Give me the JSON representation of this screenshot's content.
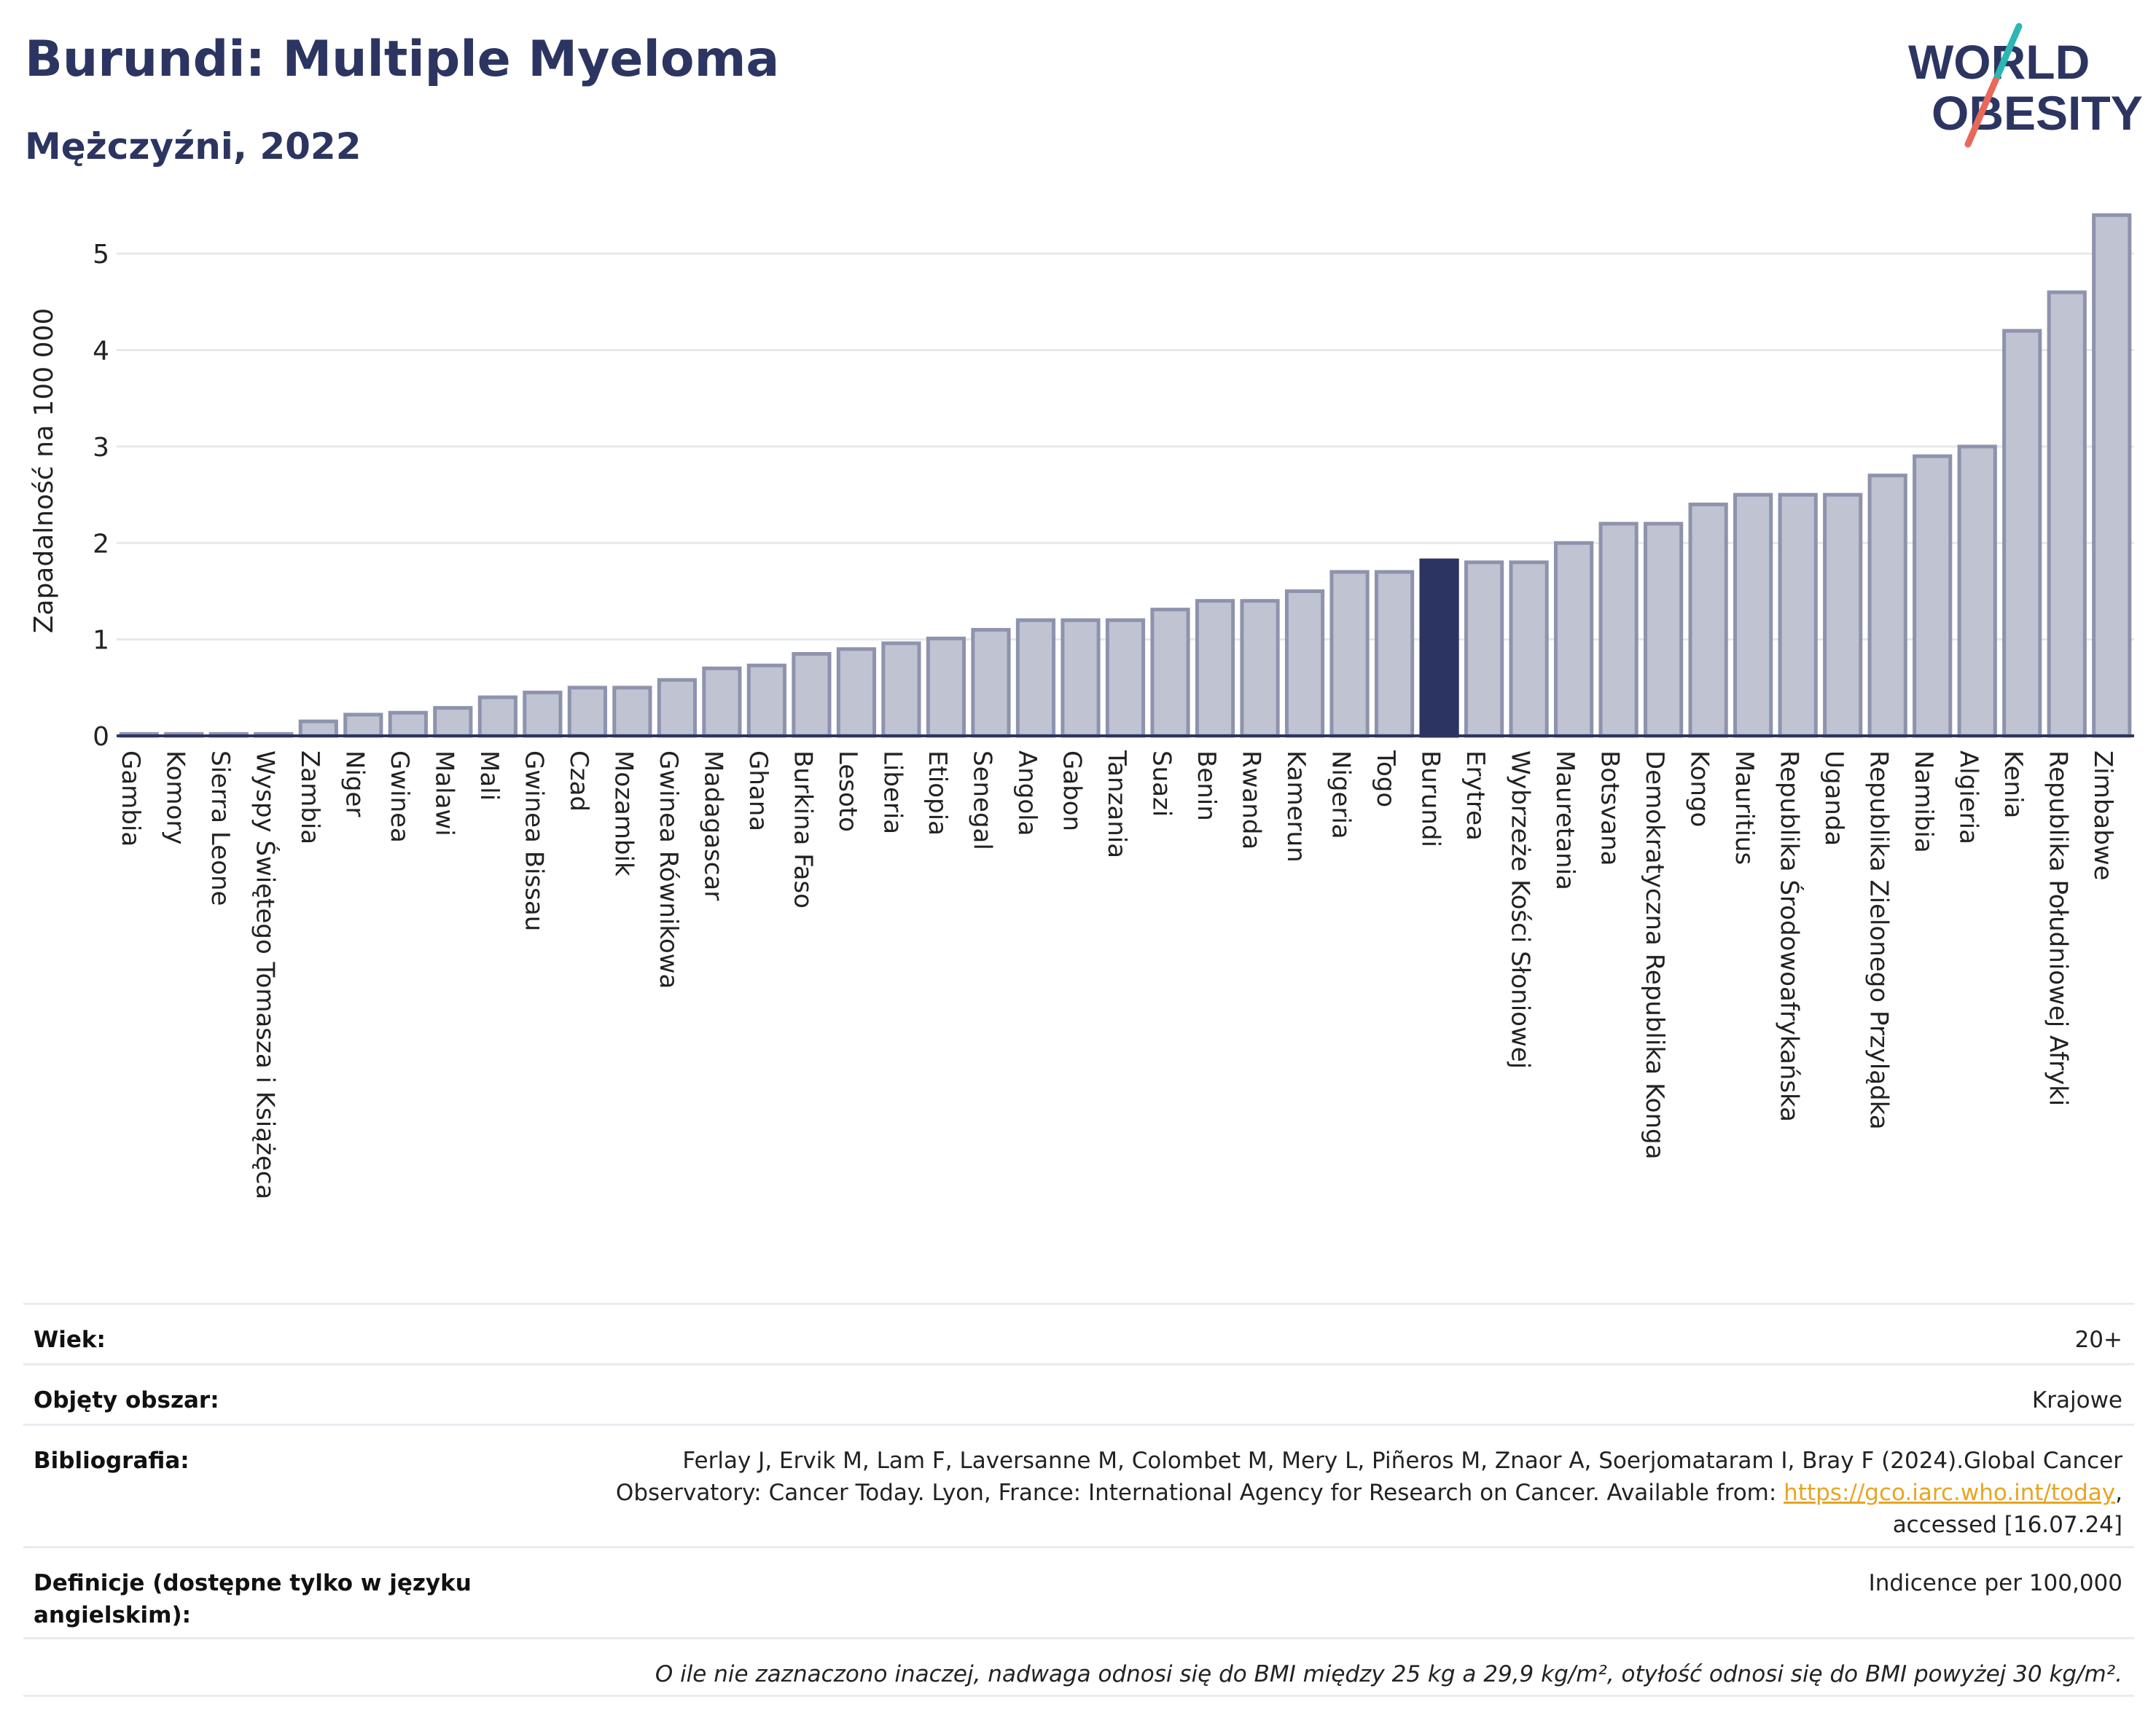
{
  "header": {
    "title": "Burundi: Multiple Myeloma",
    "subtitle": "Mężczyźni, 2022"
  },
  "logo": {
    "line1": "WORLD",
    "line2": "OBESITY",
    "accent_colors": [
      "#2bb7b3",
      "#e8695a"
    ]
  },
  "colors": {
    "highlight": "#2c3561",
    "bar": "#bfc3d2",
    "bar_border": "#8e93ad",
    "grid": "#e6e8ee",
    "title": "#2c3561"
  },
  "chart_data": {
    "type": "bar",
    "ylabel": "Zapadalność na 100 000",
    "ylim": [
      0,
      5.5
    ],
    "yticks": [
      0,
      1,
      2,
      3,
      4,
      5
    ],
    "grid": true,
    "highlight": "Burundi",
    "categories": [
      "Gambia",
      "Komory",
      "Sierra Leone",
      "Wyspy Świętego Tomasza i Książęca",
      "Zambia",
      "Niger",
      "Gwinea",
      "Malawi",
      "Mali",
      "Gwinea Bissau",
      "Czad",
      "Mozambik",
      "Gwinea Równikowa",
      "Madagascar",
      "Ghana",
      "Burkina Faso",
      "Lesoto",
      "Liberia",
      "Etiopia",
      "Senegal",
      "Angola",
      "Gabon",
      "Tanzania",
      "Suazi",
      "Benin",
      "Rwanda",
      "Kamerun",
      "Nigeria",
      "Togo",
      "Burundi",
      "Erytrea",
      "Wybrzeże Kości Słoniowej",
      "Mauretania",
      "Botsvana",
      "Demokratyczna Republika Konga",
      "Kongo",
      "Mauritius",
      "Republika Środowoafrykańska",
      "Uganda",
      "Republika Zielonego Przylądka",
      "Namibia",
      "Algieria",
      "Kenia",
      "Republika Południowej Afryki",
      "Zimbabwe"
    ],
    "values": [
      0.02,
      0.02,
      0.02,
      0.02,
      0.15,
      0.22,
      0.24,
      0.29,
      0.4,
      0.45,
      0.5,
      0.5,
      0.58,
      0.7,
      0.73,
      0.85,
      0.9,
      0.96,
      1.01,
      1.1,
      1.2,
      1.2,
      1.2,
      1.31,
      1.4,
      1.4,
      1.5,
      1.7,
      1.7,
      1.82,
      1.8,
      1.8,
      2.0,
      2.2,
      2.2,
      2.4,
      2.5,
      2.5,
      2.5,
      2.7,
      2.9,
      3.0,
      4.2,
      4.6,
      5.4
    ]
  },
  "info": {
    "age_label": "Wiek:",
    "age_value": "20+",
    "area_label": "Objęty obszar:",
    "area_value": "Krajowe",
    "bib_label": "Bibliografia:",
    "bib_line1": "Ferlay J, Ervik M, Lam F, Laversanne M, Colombet M, Mery L, Piñeros M, Znaor A, Soerjomataram I, Bray F (2024).Global Cancer",
    "bib_line2_pre": "Observatory: Cancer Today. Lyon, France: International Agency for Research on Cancer. Available from: ",
    "bib_link": "https://gco.iarc.who.int/today",
    "bib_line2_post": ",",
    "bib_line3": "accessed [16.07.24]",
    "def_label": "Definicje (dostępne tylko w języku angielskim):",
    "def_value": "Indicence per 100,000",
    "note": "O ile nie zaznaczono inaczej, nadwaga odnosi się do BMI między 25 kg a 29,9 kg/m², otyłość odnosi się do BMI powyżej 30 kg/m²."
  }
}
